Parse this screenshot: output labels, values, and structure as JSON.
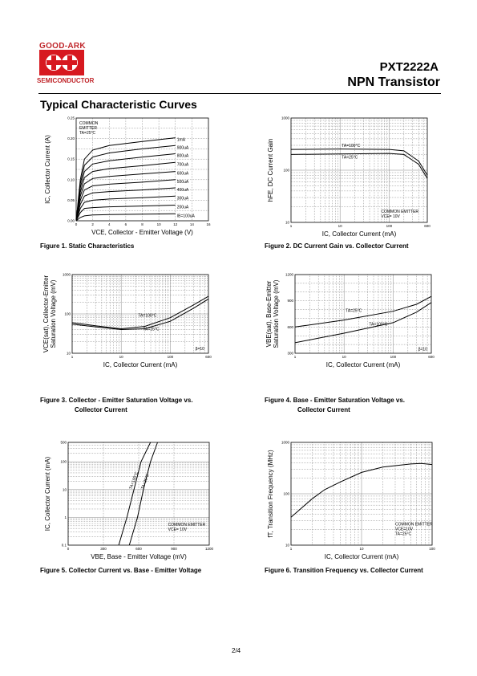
{
  "header": {
    "logo_top": "GOOD-ARK",
    "logo_bottom": "SEMICONDUCTOR",
    "part_number": "PXT2222A",
    "description": "NPN Transistor"
  },
  "section_title": "Typical Characteristic Curves",
  "page_number": "2/4",
  "figures": [
    {
      "caption": "Figure 1. Static Characteristics",
      "ylabel": "IC, Collector Current (A)",
      "xlabel": "VCE, Collector - Emitter Voltage (V)",
      "annotations": [
        "COMMON",
        "EMITTER",
        "TA=25°C"
      ]
    },
    {
      "caption": "Figure 2. DC Current Gain vs. Collector Current",
      "ylabel": "hFE, DC Current Gain",
      "xlabel": "IC, Collector Current (mA)",
      "annotations": [
        "COMMON EMITTER",
        "VCE= 10V"
      ]
    },
    {
      "caption": "Figure 3.  Collector - Emitter Saturation Voltage vs.",
      "caption2": "Collector Current",
      "ylabel": "VCE(sat), Collector-Emitter",
      "ylabel2": "Saturation Voltage (mV)",
      "xlabel": "IC, Collector Current (mA)",
      "annotations": [
        "β=10"
      ]
    },
    {
      "caption": "Figure 4. Base - Emitter Saturation Voltage vs.",
      "caption2": "Collector Current",
      "ylabel": "VBE(sat), Base-Emitter",
      "ylabel2": "Saturation Voltage (mV)",
      "xlabel": "IC, Collector Current (mA)",
      "annotations": [
        "β=10"
      ]
    },
    {
      "caption": "Figure 5. Collector Current vs. Base - Emitter Voltage",
      "ylabel": "IC, Collector Current (mA)",
      "xlabel": "VBE, Base - Emitter Voltage (mV)",
      "annotations": [
        "COMMON EMITTER",
        "VCE= 10V"
      ]
    },
    {
      "caption": "Figure 6. Transition Frequency vs. Collector Current",
      "ylabel": "fT, Transition Frequency (MHz)",
      "xlabel": "IC, Collector Current (mA)",
      "annotations": [
        "COMMON EMITTER",
        "VCE=10V",
        "TA=25°C"
      ]
    }
  ],
  "chart_data": [
    {
      "type": "line",
      "title": "Figure 1. Static Characteristics",
      "xlabel": "VCE, Collector - Emitter Voltage (V)",
      "ylabel": "IC, Collector Current (A)",
      "xlim": [
        0,
        16
      ],
      "ylim": [
        0,
        0.25
      ],
      "x_ticks": [
        "0",
        "2",
        "4",
        "6",
        "8",
        "10",
        "12",
        "14",
        "16"
      ],
      "y_ticks": [
        "0.00",
        "0.05",
        "0.10",
        "0.15",
        "0.20",
        "0.25"
      ],
      "grid": true,
      "series": [
        {
          "name": "IB=100uA",
          "x": [
            0,
            0.5,
            1,
            2,
            4,
            8,
            12
          ],
          "y": [
            0,
            0.008,
            0.012,
            0.014,
            0.015,
            0.016,
            0.017
          ]
        },
        {
          "name": "200uA",
          "x": [
            0,
            0.5,
            1,
            2,
            4,
            8,
            12
          ],
          "y": [
            0,
            0.02,
            0.03,
            0.032,
            0.034,
            0.036,
            0.038
          ]
        },
        {
          "name": "300uA",
          "x": [
            0,
            0.5,
            1,
            2,
            4,
            8,
            12
          ],
          "y": [
            0,
            0.03,
            0.045,
            0.05,
            0.053,
            0.056,
            0.06
          ]
        },
        {
          "name": "400uA",
          "x": [
            0,
            0.5,
            1,
            2,
            4,
            8,
            12
          ],
          "y": [
            0,
            0.04,
            0.06,
            0.068,
            0.071,
            0.075,
            0.08
          ]
        },
        {
          "name": "500uA",
          "x": [
            0,
            0.5,
            1,
            2,
            4,
            8,
            12
          ],
          "y": [
            0,
            0.05,
            0.075,
            0.085,
            0.089,
            0.094,
            0.1
          ]
        },
        {
          "name": "600uA",
          "x": [
            0,
            0.5,
            1,
            2,
            4,
            8,
            12
          ],
          "y": [
            0,
            0.06,
            0.09,
            0.103,
            0.108,
            0.114,
            0.12
          ]
        },
        {
          "name": "700uA",
          "x": [
            0,
            0.5,
            1,
            2,
            4,
            8,
            12
          ],
          "y": [
            0,
            0.07,
            0.105,
            0.12,
            0.127,
            0.134,
            0.142
          ]
        },
        {
          "name": "800uA",
          "x": [
            0,
            0.5,
            1,
            2,
            4,
            8,
            12
          ],
          "y": [
            0,
            0.08,
            0.12,
            0.138,
            0.146,
            0.155,
            0.163
          ]
        },
        {
          "name": "900uA",
          "x": [
            0,
            0.5,
            1,
            2,
            4,
            8,
            12
          ],
          "y": [
            0,
            0.09,
            0.135,
            0.155,
            0.165,
            0.175,
            0.183
          ]
        },
        {
          "name": "1mA",
          "x": [
            0,
            0.5,
            1,
            2,
            4,
            8,
            12
          ],
          "y": [
            0,
            0.1,
            0.15,
            0.172,
            0.183,
            0.193,
            0.202
          ]
        }
      ]
    },
    {
      "type": "line",
      "title": "Figure 2. DC Current Gain vs. Collector Current",
      "xlabel": "IC, Collector Current (mA)",
      "ylabel": "hFE, DC Current Gain",
      "x_scale": "log",
      "y_scale": "log",
      "xlim": [
        1,
        600
      ],
      "ylim": [
        10,
        1000
      ],
      "x_ticks": [
        "1",
        "10",
        "100",
        "600"
      ],
      "y_ticks": [
        "10",
        "100",
        "1000"
      ],
      "grid": true,
      "series": [
        {
          "name": "TA=100°C",
          "x": [
            1,
            10,
            100,
            200,
            400,
            600
          ],
          "y": [
            250,
            255,
            250,
            235,
            150,
            80
          ]
        },
        {
          "name": "TA=25°C",
          "x": [
            1,
            10,
            100,
            200,
            400,
            600
          ],
          "y": [
            200,
            205,
            210,
            200,
            130,
            70
          ]
        }
      ]
    },
    {
      "type": "line",
      "title": "Figure 3. Collector - Emitter Saturation Voltage vs. Collector Current",
      "xlabel": "IC, Collector Current (mA)",
      "ylabel": "VCE(sat), Collector-Emitter Saturation Voltage (mV)",
      "x_scale": "log",
      "y_scale": "log",
      "xlim": [
        1,
        600
      ],
      "ylim": [
        10,
        1000
      ],
      "x_ticks": [
        "1",
        "10",
        "100",
        "600"
      ],
      "y_ticks": [
        "10",
        "100",
        "1000"
      ],
      "grid": true,
      "series": [
        {
          "name": "TA=100°C",
          "x": [
            1,
            3,
            10,
            30,
            100,
            300,
            600
          ],
          "y": [
            60,
            50,
            42,
            48,
            80,
            170,
            280
          ]
        },
        {
          "name": "TA=25°C",
          "x": [
            1,
            3,
            10,
            30,
            100,
            300,
            600
          ],
          "y": [
            55,
            47,
            40,
            42,
            65,
            140,
            240
          ]
        }
      ]
    },
    {
      "type": "line",
      "title": "Figure 4. Base - Emitter Saturation Voltage vs. Collector Current",
      "xlabel": "IC, Collector Current (mA)",
      "ylabel": "VBE(sat), Base-Emitter Saturation Voltage (mV)",
      "x_scale": "log",
      "xlim": [
        1,
        600
      ],
      "ylim": [
        300,
        1200
      ],
      "x_ticks": [
        "1",
        "10",
        "100",
        "600"
      ],
      "y_ticks": [
        "300",
        "600",
        "900",
        "1200"
      ],
      "grid": true,
      "series": [
        {
          "name": "TA=25°C",
          "x": [
            1,
            10,
            100,
            300,
            600
          ],
          "y": [
            600,
            680,
            780,
            860,
            950
          ]
        },
        {
          "name": "TA=100°C",
          "x": [
            1,
            10,
            100,
            300,
            600
          ],
          "y": [
            420,
            530,
            650,
            770,
            880
          ]
        }
      ]
    },
    {
      "type": "line",
      "title": "Figure 5. Collector Current vs. Base - Emitter Voltage",
      "xlabel": "VBE, Base - Emitter Voltage (mV)",
      "ylabel": "IC, Collector Current (mA)",
      "y_scale": "log",
      "xlim": [
        0,
        1200
      ],
      "ylim": [
        0.1,
        500
      ],
      "x_ticks": [
        "0",
        "300",
        "600",
        "900",
        "1200"
      ],
      "y_ticks": [
        "0.1",
        "1",
        "10",
        "100",
        "500"
      ],
      "grid": true,
      "series": [
        {
          "name": "TA=100°C",
          "x": [
            430,
            500,
            560,
            620,
            700
          ],
          "y": [
            0.1,
            1,
            10,
            100,
            500
          ]
        },
        {
          "name": "TA=25°C",
          "x": [
            520,
            590,
            640,
            700,
            760
          ],
          "y": [
            0.1,
            1,
            10,
            100,
            500
          ]
        }
      ]
    },
    {
      "type": "line",
      "title": "Figure 6. Transition Frequency vs. Collector Current",
      "xlabel": "IC, Collector Current (mA)",
      "ylabel": "fT, Transition Frequency (MHz)",
      "x_scale": "log",
      "y_scale": "log",
      "xlim": [
        1,
        100
      ],
      "ylim": [
        10,
        1000
      ],
      "x_ticks": [
        "1",
        "10",
        "100"
      ],
      "y_ticks": [
        "10",
        "100",
        "1000"
      ],
      "grid": true,
      "series": [
        {
          "name": "",
          "x": [
            1,
            2,
            3,
            5,
            10,
            20,
            50,
            70,
            100
          ],
          "y": [
            35,
            80,
            120,
            170,
            260,
            330,
            380,
            390,
            370
          ]
        }
      ]
    }
  ]
}
